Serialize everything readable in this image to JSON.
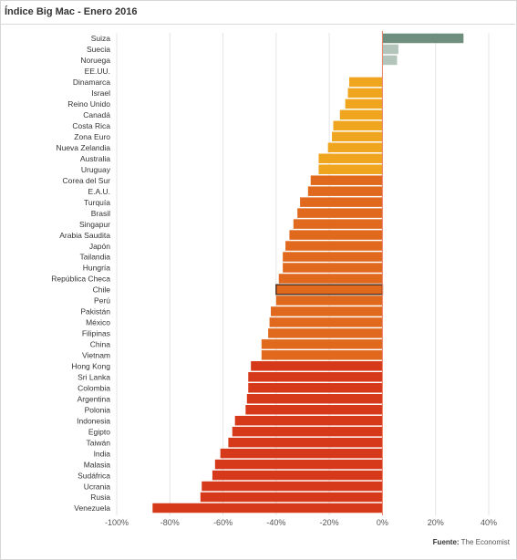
{
  "header": {
    "title": "Índice Big Mac - Enero 2016"
  },
  "source": {
    "label": "Fuente:",
    "name": "The Economist"
  },
  "chart_data": {
    "type": "bar",
    "orientation": "horizontal",
    "title": "Índice Big Mac - Enero 2016",
    "xlabel": "",
    "ylabel": "",
    "xlim": [
      -100,
      40
    ],
    "grid": true,
    "legend": "none",
    "tick_labels": [
      "-100%",
      "-80%",
      "-60%",
      "-40%",
      "-20%",
      "0%",
      "20%",
      "40%"
    ],
    "tick_values": [
      -100,
      -80,
      -60,
      -40,
      -20,
      0,
      20,
      40
    ],
    "highlighted": "Chile",
    "categories": [
      "Suiza",
      "Suecia",
      "Noruega",
      "EE.UU.",
      "Dinamarca",
      "Israel",
      "Reino Unido",
      "Canadá",
      "Costa Rica",
      "Zona Euro",
      "Nueva Zelandia",
      "Australia",
      "Uruguay",
      "Corea del Sur",
      "E.A.U.",
      "Turquía",
      "Brasil",
      "Singapur",
      "Arabia Saudita",
      "Japón",
      "Tailandia",
      "Hungría",
      "República Checa",
      "Chile",
      "Perú",
      "Pakistán",
      "México",
      "Filipinas",
      "China",
      "Vietnam",
      "Hong Kong",
      "Sri Lanka",
      "Colombia",
      "Argentina",
      "Polonia",
      "Indonesia",
      "Egipto",
      "Taiwán",
      "India",
      "Malasia",
      "Sudáfrica",
      "Ucrania",
      "Rusia",
      "Venezuela"
    ],
    "values": [
      30.5,
      6,
      5.5,
      0,
      -12.5,
      -13,
      -14,
      -16,
      -18.5,
      -19,
      -20.5,
      -24,
      -24,
      -27,
      -28,
      -31,
      -32,
      -33.5,
      -35,
      -36.5,
      -37.5,
      -37.5,
      -39,
      -40,
      -40,
      -42,
      -42.5,
      -43,
      -45.5,
      -45.5,
      -49.5,
      -50.5,
      -50.5,
      -51,
      -51.5,
      -55.5,
      -56.5,
      -58,
      -61,
      -63,
      -64,
      -68,
      -68.5,
      -86.5
    ],
    "colors": [
      "#6f8e7e",
      "#b3c4ba",
      "#b3c4ba",
      "#b3c4ba",
      "#efa51d",
      "#efa51d",
      "#efa51d",
      "#efa51d",
      "#efa51d",
      "#efa51d",
      "#efa51d",
      "#efa51d",
      "#efa51d",
      "#e0691e",
      "#e0691e",
      "#e0691e",
      "#e0691e",
      "#e0691e",
      "#e0691e",
      "#e0691e",
      "#e0691e",
      "#e0691e",
      "#e0691e",
      "#e0691e",
      "#e0691e",
      "#e0691e",
      "#e0691e",
      "#e0691e",
      "#e0691e",
      "#e0691e",
      "#d6381a",
      "#d6381a",
      "#d6381a",
      "#d6381a",
      "#d6381a",
      "#d6381a",
      "#d6381a",
      "#d6381a",
      "#d6381a",
      "#d6381a",
      "#d6381a",
      "#d6381a",
      "#d6381a",
      "#d6381a"
    ]
  }
}
